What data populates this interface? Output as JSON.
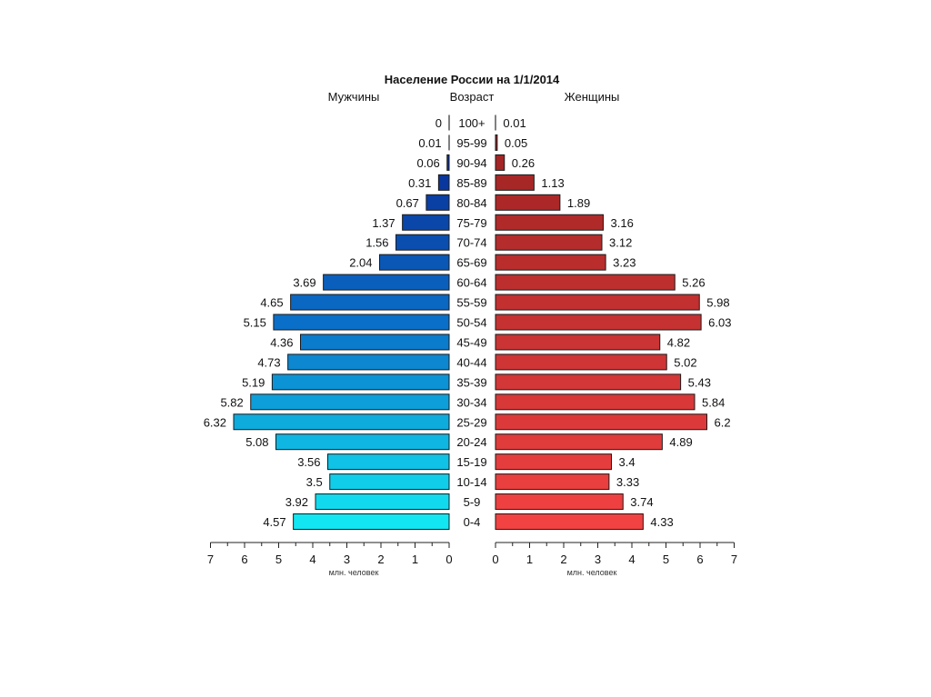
{
  "chart_data": {
    "type": "bar",
    "orientation": "horizontal",
    "layout": "population-pyramid",
    "title": "Население России на 1/1/2014",
    "left_header": "Мужчины",
    "center_header": "Возраст",
    "right_header": "Женщины",
    "xlabel": "млн. человек",
    "xlim": [
      0,
      7
    ],
    "x_ticks": [
      "7",
      "6",
      "5",
      "4",
      "3",
      "2",
      "1",
      "0"
    ],
    "x_ticks_right": [
      "0",
      "1",
      "2",
      "3",
      "4",
      "5",
      "6",
      "7"
    ],
    "categories": [
      "100+",
      "95-99",
      "90-94",
      "85-89",
      "80-84",
      "75-79",
      "70-74",
      "65-69",
      "60-64",
      "55-59",
      "50-54",
      "45-49",
      "40-44",
      "35-39",
      "30-34",
      "25-29",
      "20-24",
      "15-19",
      "10-14",
      "5-9",
      "0-4"
    ],
    "series": [
      {
        "name": "Мужчины",
        "values": [
          0,
          0.01,
          0.06,
          0.31,
          0.67,
          1.37,
          1.56,
          2.04,
          3.69,
          4.65,
          5.15,
          4.36,
          4.73,
          5.19,
          5.82,
          6.32,
          5.08,
          3.56,
          3.5,
          3.92,
          4.57
        ],
        "labels": [
          "0",
          "0.01",
          "0.06",
          "0.31",
          "0.67",
          "1.37",
          "1.56",
          "2.04",
          "3.69",
          "4.65",
          "5.15",
          "4.36",
          "4.73",
          "5.19",
          "5.82",
          "6.32",
          "5.08",
          "3.56",
          "3.5",
          "3.92",
          "4.57"
        ]
      },
      {
        "name": "Женщины",
        "values": [
          0.01,
          0.05,
          0.26,
          1.13,
          1.89,
          3.16,
          3.12,
          3.23,
          5.26,
          5.98,
          6.03,
          4.82,
          5.02,
          5.43,
          5.84,
          6.2,
          4.89,
          3.4,
          3.33,
          3.74,
          4.33
        ],
        "labels": [
          "0.01",
          "0.05",
          "0.26",
          "1.13",
          "1.89",
          "3.16",
          "3.12",
          "3.23",
          "5.26",
          "5.98",
          "6.03",
          "4.82",
          "5.02",
          "5.43",
          "5.84",
          "6.2",
          "4.89",
          "3.4",
          "3.33",
          "3.74",
          "4.33"
        ]
      }
    ],
    "colors": {
      "male_top": "#0a1f8a",
      "male_mid": "#0a6fc8",
      "male_bottom": "#12e6f2",
      "female_top": "#9a2222",
      "female_bottom": "#f24242"
    },
    "grid": false,
    "legend": "none"
  }
}
